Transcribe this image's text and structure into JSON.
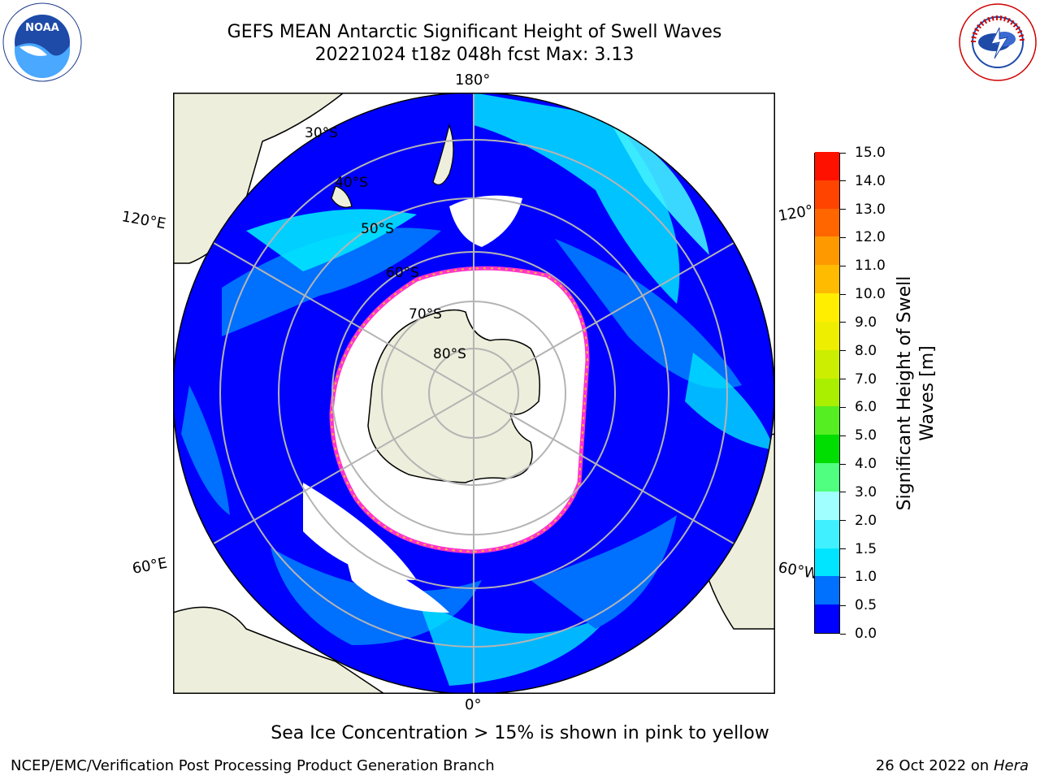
{
  "title": {
    "line1": "GEFS MEAN Antarctic Significant Height of Swell Waves",
    "line2": "20221024 t18z 048h fcst   Max: 3.13"
  },
  "map": {
    "projection": "south-polar-stereographic",
    "longitude_labels": {
      "top": "180°",
      "bottom": "0°",
      "left_upper": "120°E",
      "left_lower": "60°E",
      "right_upper": "120°",
      "right_lower": "60°W"
    },
    "latitude_labels": [
      "30°S",
      "40°S",
      "50°S",
      "60°S",
      "70°S",
      "80°S"
    ],
    "colors": {
      "land": "#eeeedc",
      "sea_ice": "#ffffff",
      "ice_edge_pink": "#ff33cc",
      "ice_edge_yellow": "#ffb833",
      "grid": "#b4b4b4",
      "ocean_base": "#0033ff"
    }
  },
  "colorbar": {
    "label": "Significant Height of Swell Waves [m]",
    "label_line1": "Significant Height of Swell",
    "label_line2": "Waves [m]",
    "ticks": [
      "0.0",
      "0.5",
      "1.0",
      "1.5",
      "2.0",
      "3.0",
      "4.0",
      "5.0",
      "6.0",
      "7.0",
      "8.0",
      "9.0",
      "10.0",
      "11.0",
      "12.0",
      "13.0",
      "14.0",
      "15.0"
    ],
    "colors": [
      "#0000ff",
      "#0070ff",
      "#00e5ff",
      "#40f0ff",
      "#a0ffff",
      "#50ff80",
      "#00dd00",
      "#55ee22",
      "#aaee00",
      "#ccee00",
      "#eeee00",
      "#ffee00",
      "#ffbb00",
      "#ff9900",
      "#ff6600",
      "#ff4400",
      "#ff1100"
    ]
  },
  "footnote": "Sea Ice Concentration > 15% is shown in pink to yellow",
  "footer": {
    "left": "NCEP/EMC/Verification Post Processing Product Generation Branch",
    "right_date": "26 Oct 2022 on ",
    "right_host": "Hera"
  },
  "logos": {
    "noaa_text": "NOAA",
    "nws_text": "NATIONAL WEATHER SERVICE"
  }
}
